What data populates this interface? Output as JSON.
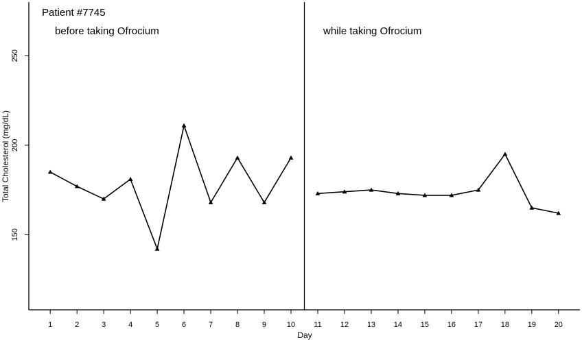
{
  "chart_data": {
    "type": "line",
    "title": "Patient #7745",
    "xlabel": "Day",
    "ylabel": "Total Cholesterol (mg/dL)",
    "ylim": [
      108,
      280
    ],
    "xlim": [
      0.2,
      20.8
    ],
    "y_ticks": [
      150,
      200,
      250
    ],
    "x_ticks": [
      1,
      2,
      3,
      4,
      5,
      6,
      7,
      8,
      9,
      10,
      11,
      12,
      13,
      14,
      15,
      16,
      17,
      18,
      19,
      20
    ],
    "phase_divider_day": 10.5,
    "grid": false,
    "series": [
      {
        "name": "before taking Ofrocium",
        "x": [
          1,
          2,
          3,
          4,
          5,
          6,
          7,
          8,
          9,
          10
        ],
        "values": [
          185,
          177,
          170,
          181,
          142,
          211,
          168,
          193,
          168,
          193
        ]
      },
      {
        "name": "while taking Ofrocium",
        "x": [
          11,
          12,
          13,
          14,
          15,
          16,
          17,
          18,
          19,
          20
        ],
        "values": [
          173,
          174,
          175,
          173,
          172,
          172,
          175,
          195,
          165,
          162
        ]
      }
    ]
  }
}
